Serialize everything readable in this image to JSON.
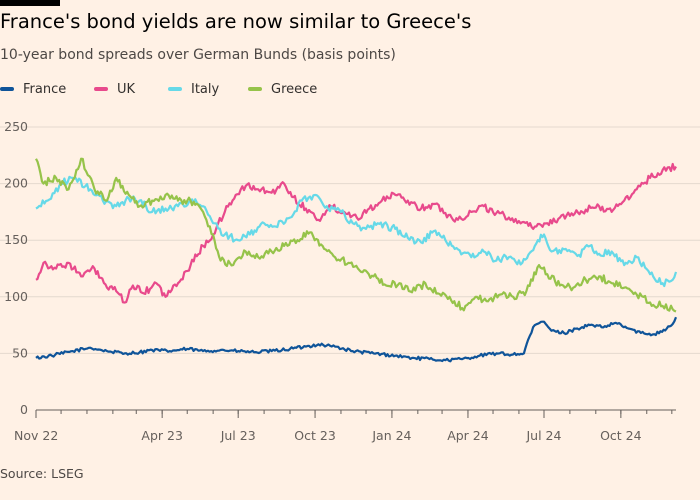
{
  "title": "France's bond yields are now similar to Greece's",
  "subtitle": "10-year bond spreads over German Bunds (basis points)",
  "source": "Source: LSEG",
  "legend": [
    {
      "label": "France",
      "color": "#0f5499"
    },
    {
      "label": "UK",
      "color": "#e84a8c"
    },
    {
      "label": "Italy",
      "color": "#66d9e8"
    },
    {
      "label": "Greece",
      "color": "#96c34a"
    }
  ],
  "chart_data": {
    "type": "line",
    "ylim": [
      0,
      250
    ],
    "yticks": [
      0,
      50,
      100,
      150,
      200,
      250
    ],
    "x_tick_labels": [
      "Nov 22",
      "Apr 23",
      "Jul 23",
      "Oct 23",
      "Jan 24",
      "Apr 24",
      "Jul 24",
      "Oct 24"
    ],
    "x_tick_dates": [
      "2022-11-01",
      "2023-04-01",
      "2023-07-01",
      "2023-10-01",
      "2024-01-01",
      "2024-04-01",
      "2024-07-01",
      "2024-10-01"
    ],
    "x_range": [
      "2022-11-01",
      "2024-12-06"
    ],
    "grid": true,
    "legend_position": "top-left",
    "series": [
      {
        "name": "France",
        "color": "#0f5499",
        "points": [
          [
            "2022-11-01",
            46
          ],
          [
            "2022-11-20",
            48
          ],
          [
            "2022-12-15",
            52
          ],
          [
            "2023-01-05",
            55
          ],
          [
            "2023-01-25",
            52
          ],
          [
            "2023-02-15",
            50
          ],
          [
            "2023-03-05",
            51
          ],
          [
            "2023-03-20",
            53
          ],
          [
            "2023-04-10",
            52
          ],
          [
            "2023-05-01",
            54
          ],
          [
            "2023-05-20",
            52
          ],
          [
            "2023-06-10",
            53
          ],
          [
            "2023-07-01",
            52
          ],
          [
            "2023-07-20",
            51
          ],
          [
            "2023-08-10",
            52
          ],
          [
            "2023-09-01",
            54
          ],
          [
            "2023-09-20",
            56
          ],
          [
            "2023-10-05",
            58
          ],
          [
            "2023-10-25",
            56
          ],
          [
            "2023-11-15",
            52
          ],
          [
            "2023-12-10",
            50
          ],
          [
            "2024-01-05",
            48
          ],
          [
            "2024-01-25",
            46
          ],
          [
            "2024-02-15",
            45
          ],
          [
            "2024-03-05",
            44
          ],
          [
            "2024-03-25",
            45
          ],
          [
            "2024-04-15",
            48
          ],
          [
            "2024-05-05",
            50
          ],
          [
            "2024-05-25",
            49
          ],
          [
            "2024-06-07",
            50
          ],
          [
            "2024-06-12",
            62
          ],
          [
            "2024-06-20",
            75
          ],
          [
            "2024-07-01",
            78
          ],
          [
            "2024-07-10",
            70
          ],
          [
            "2024-07-25",
            68
          ],
          [
            "2024-08-10",
            72
          ],
          [
            "2024-08-25",
            75
          ],
          [
            "2024-09-10",
            73
          ],
          [
            "2024-09-25",
            77
          ],
          [
            "2024-10-10",
            72
          ],
          [
            "2024-10-25",
            68
          ],
          [
            "2024-11-10",
            67
          ],
          [
            "2024-11-25",
            72
          ],
          [
            "2024-12-02",
            76
          ],
          [
            "2024-12-06",
            82
          ]
        ]
      },
      {
        "name": "UK",
        "color": "#e84a8c",
        "points": [
          [
            "2022-11-01",
            115
          ],
          [
            "2022-11-10",
            130
          ],
          [
            "2022-11-25",
            125
          ],
          [
            "2022-12-10",
            130
          ],
          [
            "2022-12-25",
            118
          ],
          [
            "2023-01-10",
            125
          ],
          [
            "2023-01-25",
            108
          ],
          [
            "2023-02-05",
            105
          ],
          [
            "2023-02-15",
            95
          ],
          [
            "2023-02-25",
            110
          ],
          [
            "2023-03-10",
            103
          ],
          [
            "2023-03-25",
            112
          ],
          [
            "2023-04-05",
            100
          ],
          [
            "2023-04-20",
            112
          ],
          [
            "2023-05-05",
            128
          ],
          [
            "2023-05-20",
            145
          ],
          [
            "2023-06-01",
            155
          ],
          [
            "2023-06-15",
            175
          ],
          [
            "2023-06-28",
            190
          ],
          [
            "2023-07-10",
            198
          ],
          [
            "2023-07-25",
            195
          ],
          [
            "2023-08-10",
            192
          ],
          [
            "2023-08-25",
            200
          ],
          [
            "2023-09-05",
            188
          ],
          [
            "2023-09-20",
            178
          ],
          [
            "2023-10-05",
            168
          ],
          [
            "2023-10-20",
            180
          ],
          [
            "2023-11-05",
            175
          ],
          [
            "2023-11-20",
            170
          ],
          [
            "2023-12-05",
            178
          ],
          [
            "2023-12-20",
            185
          ],
          [
            "2024-01-05",
            190
          ],
          [
            "2024-01-20",
            185
          ],
          [
            "2024-02-05",
            178
          ],
          [
            "2024-02-20",
            182
          ],
          [
            "2024-03-05",
            174
          ],
          [
            "2024-03-20",
            168
          ],
          [
            "2024-04-05",
            175
          ],
          [
            "2024-04-20",
            180
          ],
          [
            "2024-05-05",
            174
          ],
          [
            "2024-05-20",
            170
          ],
          [
            "2024-06-05",
            166
          ],
          [
            "2024-06-20",
            162
          ],
          [
            "2024-07-05",
            165
          ],
          [
            "2024-07-20",
            170
          ],
          [
            "2024-08-05",
            172
          ],
          [
            "2024-08-20",
            177
          ],
          [
            "2024-09-05",
            180
          ],
          [
            "2024-09-20",
            175
          ],
          [
            "2024-10-05",
            185
          ],
          [
            "2024-10-20",
            195
          ],
          [
            "2024-11-05",
            205
          ],
          [
            "2024-11-20",
            212
          ],
          [
            "2024-12-06",
            215
          ]
        ]
      },
      {
        "name": "Italy",
        "color": "#66d9e8",
        "points": [
          [
            "2022-11-01",
            178
          ],
          [
            "2022-11-15",
            185
          ],
          [
            "2022-12-01",
            200
          ],
          [
            "2022-12-15",
            205
          ],
          [
            "2023-01-05",
            195
          ],
          [
            "2023-01-20",
            185
          ],
          [
            "2023-02-05",
            180
          ],
          [
            "2023-02-20",
            187
          ],
          [
            "2023-03-05",
            185
          ],
          [
            "2023-03-20",
            175
          ],
          [
            "2023-04-05",
            178
          ],
          [
            "2023-04-20",
            180
          ],
          [
            "2023-05-05",
            185
          ],
          [
            "2023-05-20",
            180
          ],
          [
            "2023-06-01",
            165
          ],
          [
            "2023-06-15",
            155
          ],
          [
            "2023-07-01",
            150
          ],
          [
            "2023-07-15",
            155
          ],
          [
            "2023-08-01",
            165
          ],
          [
            "2023-08-15",
            162
          ],
          [
            "2023-09-01",
            170
          ],
          [
            "2023-09-15",
            185
          ],
          [
            "2023-10-01",
            190
          ],
          [
            "2023-10-15",
            180
          ],
          [
            "2023-11-01",
            175
          ],
          [
            "2023-11-15",
            165
          ],
          [
            "2023-12-01",
            160
          ],
          [
            "2023-12-15",
            165
          ],
          [
            "2024-01-05",
            160
          ],
          [
            "2024-01-20",
            152
          ],
          [
            "2024-02-05",
            148
          ],
          [
            "2024-02-20",
            158
          ],
          [
            "2024-03-05",
            150
          ],
          [
            "2024-03-20",
            142
          ],
          [
            "2024-04-05",
            135
          ],
          [
            "2024-04-20",
            140
          ],
          [
            "2024-05-05",
            132
          ],
          [
            "2024-05-20",
            135
          ],
          [
            "2024-06-05",
            130
          ],
          [
            "2024-06-20",
            145
          ],
          [
            "2024-07-01",
            155
          ],
          [
            "2024-07-10",
            140
          ],
          [
            "2024-07-25",
            142
          ],
          [
            "2024-08-10",
            136
          ],
          [
            "2024-08-25",
            145
          ],
          [
            "2024-09-05",
            138
          ],
          [
            "2024-09-20",
            140
          ],
          [
            "2024-10-05",
            128
          ],
          [
            "2024-10-20",
            135
          ],
          [
            "2024-11-05",
            120
          ],
          [
            "2024-11-20",
            112
          ],
          [
            "2024-12-02",
            115
          ],
          [
            "2024-12-06",
            122
          ]
        ]
      },
      {
        "name": "Greece",
        "color": "#96c34a",
        "points": [
          [
            "2022-11-01",
            222
          ],
          [
            "2022-11-10",
            200
          ],
          [
            "2022-11-25",
            205
          ],
          [
            "2022-12-10",
            195
          ],
          [
            "2022-12-25",
            222
          ],
          [
            "2023-01-10",
            195
          ],
          [
            "2023-01-25",
            185
          ],
          [
            "2023-02-05",
            205
          ],
          [
            "2023-02-20",
            190
          ],
          [
            "2023-03-05",
            180
          ],
          [
            "2023-03-20",
            185
          ],
          [
            "2023-04-05",
            190
          ],
          [
            "2023-04-20",
            185
          ],
          [
            "2023-05-05",
            185
          ],
          [
            "2023-05-20",
            175
          ],
          [
            "2023-06-01",
            155
          ],
          [
            "2023-06-10",
            132
          ],
          [
            "2023-06-25",
            128
          ],
          [
            "2023-07-10",
            140
          ],
          [
            "2023-07-25",
            135
          ],
          [
            "2023-08-10",
            140
          ],
          [
            "2023-08-25",
            145
          ],
          [
            "2023-09-10",
            150
          ],
          [
            "2023-09-25",
            157
          ],
          [
            "2023-10-10",
            145
          ],
          [
            "2023-10-25",
            135
          ],
          [
            "2023-11-10",
            130
          ],
          [
            "2023-11-25",
            122
          ],
          [
            "2023-12-10",
            118
          ],
          [
            "2023-12-25",
            110
          ],
          [
            "2024-01-10",
            112
          ],
          [
            "2024-01-25",
            104
          ],
          [
            "2024-02-10",
            112
          ],
          [
            "2024-02-25",
            103
          ],
          [
            "2024-03-10",
            100
          ],
          [
            "2024-03-25",
            90
          ],
          [
            "2024-04-10",
            100
          ],
          [
            "2024-04-25",
            96
          ],
          [
            "2024-05-10",
            102
          ],
          [
            "2024-05-25",
            100
          ],
          [
            "2024-06-10",
            105
          ],
          [
            "2024-06-25",
            128
          ],
          [
            "2024-07-05",
            120
          ],
          [
            "2024-07-20",
            110
          ],
          [
            "2024-08-05",
            108
          ],
          [
            "2024-08-20",
            115
          ],
          [
            "2024-09-05",
            118
          ],
          [
            "2024-09-20",
            112
          ],
          [
            "2024-10-05",
            108
          ],
          [
            "2024-10-20",
            102
          ],
          [
            "2024-11-05",
            95
          ],
          [
            "2024-11-20",
            92
          ],
          [
            "2024-12-02",
            89
          ],
          [
            "2024-12-06",
            87
          ]
        ]
      }
    ]
  }
}
